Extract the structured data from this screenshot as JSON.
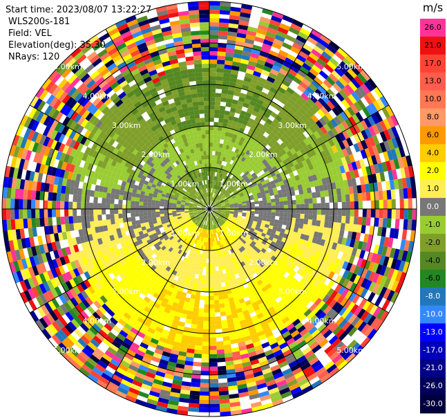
{
  "chart_data": {
    "type": "ppi",
    "header": [
      "Start time: 2023/08/07 13:22:27",
      "WLS200s-181",
      "Field: VEL",
      "Elevation(deg): 35.30",
      "NRays: 120"
    ],
    "rlim": [
      0,
      5
    ],
    "range_rings": [
      {
        "value": 1,
        "label": "1.00km"
      },
      {
        "value": 2,
        "label": "2.00km"
      },
      {
        "value": 3,
        "label": "3.00km"
      },
      {
        "value": 4,
        "label": "4.00km"
      },
      {
        "value": 5,
        "label": "5.00km"
      }
    ],
    "spoke_step_deg": 30,
    "colorbar": {
      "title": "m/s",
      "ticks": [
        {
          "value": 26,
          "label": "26.0"
        },
        {
          "value": 21,
          "label": "21.0"
        },
        {
          "value": 17,
          "label": "17.0"
        },
        {
          "value": 13,
          "label": "13.0"
        },
        {
          "value": 10,
          "label": "10.0"
        },
        {
          "value": 8,
          "label": "8.0"
        },
        {
          "value": 6,
          "label": "6.0"
        },
        {
          "value": 4,
          "label": "4.0"
        },
        {
          "value": 2,
          "label": "2.0"
        },
        {
          "value": 1,
          "label": "1.0"
        },
        {
          "value": 0,
          "label": "0.0"
        },
        {
          "value": -1,
          "label": "-1.0"
        },
        {
          "value": -2,
          "label": "-2.0"
        },
        {
          "value": -4,
          "label": "-4.0"
        },
        {
          "value": -6,
          "label": "-6.0"
        },
        {
          "value": -8,
          "label": "-8.0"
        },
        {
          "value": -10,
          "label": "-10.0"
        },
        {
          "value": -13,
          "label": "-13.0"
        },
        {
          "value": -17,
          "label": "-17.0"
        },
        {
          "value": -21,
          "label": "-21.0"
        },
        {
          "value": -26,
          "label": "-26.0"
        },
        {
          "value": -30,
          "label": "-30.0"
        }
      ],
      "colors": [
        "#ff3399",
        "#ee1111",
        "#ff4433",
        "#ff5d4d",
        "#ff7755",
        "#ff9966",
        "#ff9900",
        "#ffcc00",
        "#ffff00",
        "#ffee55",
        "#777777",
        "#99cc33",
        "#7f9f2a",
        "#558822",
        "#228822",
        "#2277bb",
        "#3388ff",
        "#0000ff",
        "#0000bb",
        "#000088",
        "#00005a",
        "#00003c"
      ]
    }
  }
}
